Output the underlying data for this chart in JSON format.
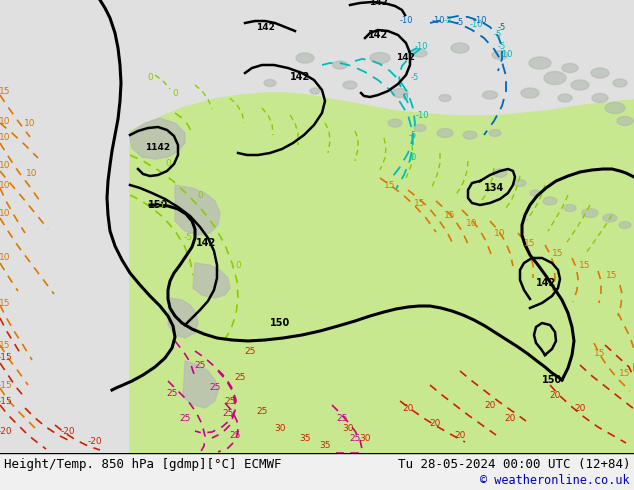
{
  "title_left": "Height/Temp. 850 hPa [gdmp][°C] ECMWF",
  "title_right": "Tu 28-05-2024 00:00 UTC (12+84)",
  "copyright": "© weatheronline.co.uk",
  "bg_color": "#f0f0f0",
  "map_bg_color": "#e8e8e8",
  "green_fill": "#c8e890",
  "bottom_bar_color": "#ffffff",
  "title_fontsize": 9,
  "copyright_color": "#0000cc",
  "title_color": "#000000",
  "figure_width": 6.34,
  "figure_height": 4.9,
  "dpi": 100
}
